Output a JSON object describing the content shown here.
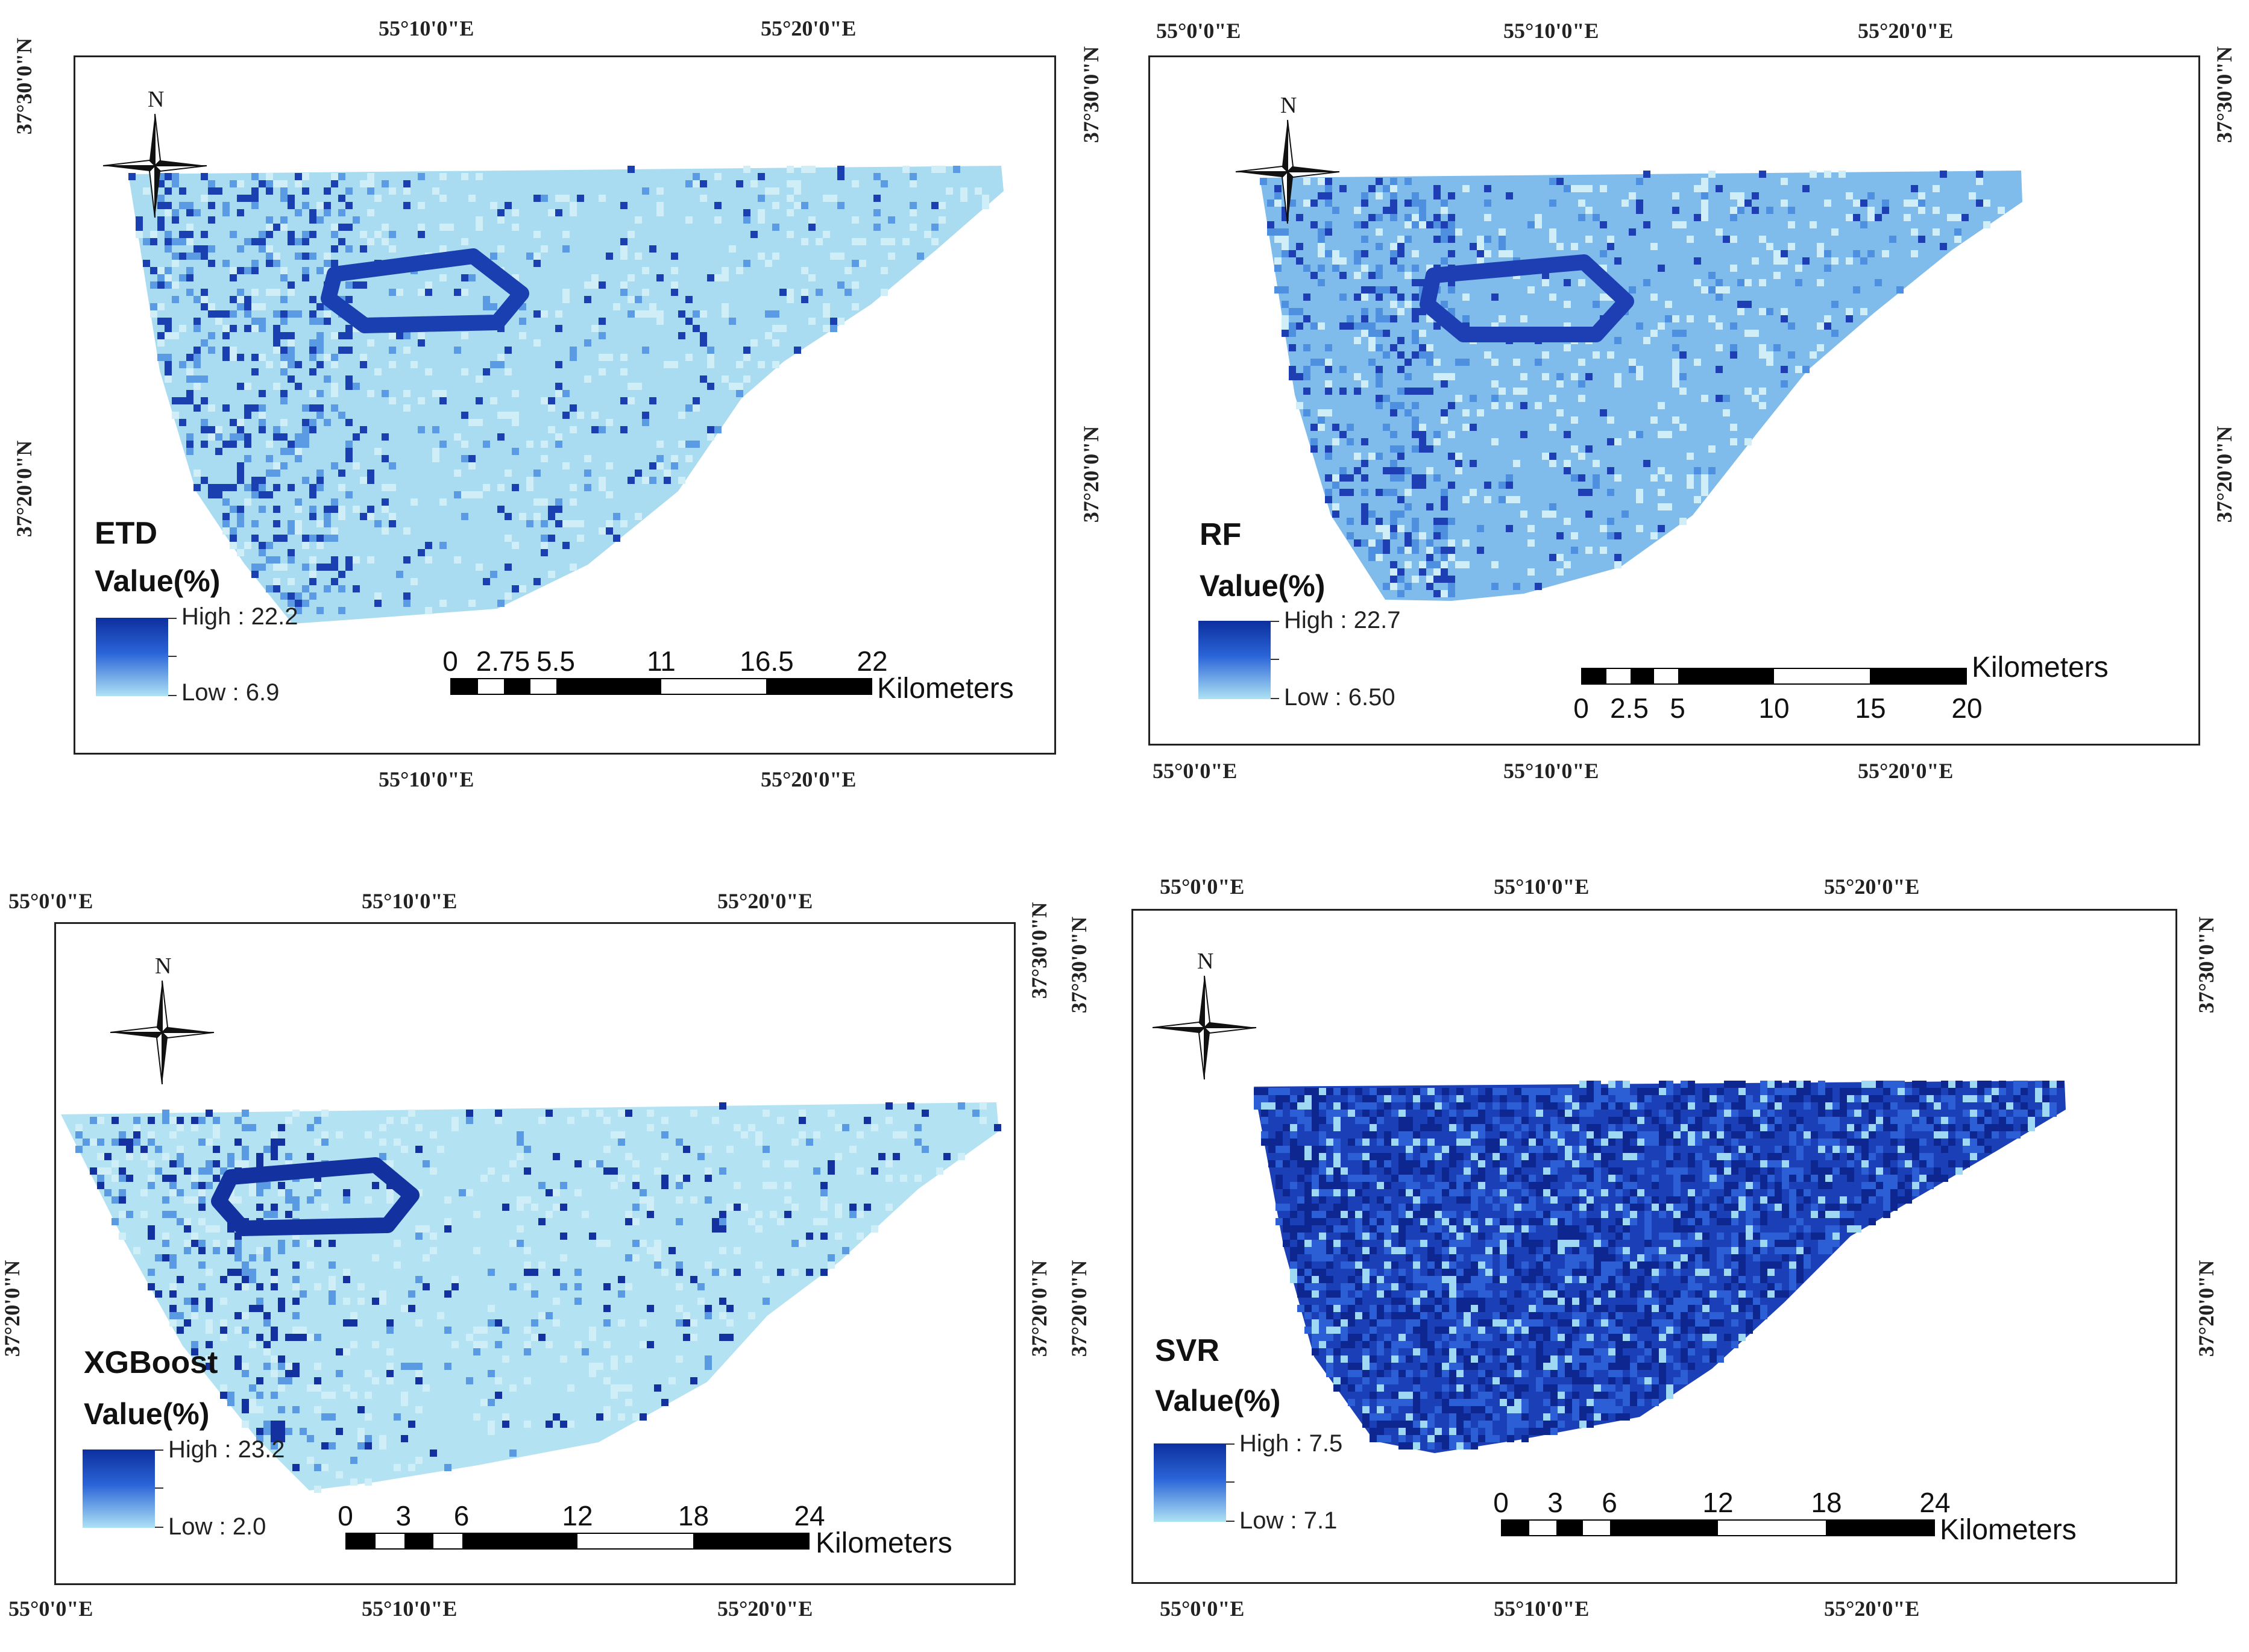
{
  "coordinate_labels": {
    "e_55_00": "55°0'0\"E",
    "e_55_10": "55°10'0\"E",
    "e_55_20": "55°20'0\"E",
    "n_37_30": "37°30'0\"N",
    "n_37_20": "37°20'0\"N"
  },
  "north_arrow_label": "N",
  "legend_title": "Value(%)",
  "scale_unit": "Kilometers",
  "panels": [
    {
      "id": "etd",
      "model": "ETD",
      "legend_high": "High : 22.2",
      "legend_low": "Low : 6.9",
      "scale_labels": [
        "0",
        "2.75",
        "5.5",
        "11",
        "16.5",
        "22"
      ],
      "palette": {
        "base": "#a9dcf0",
        "mid": "#5b9be3",
        "dark": "#1a3fb0"
      }
    },
    {
      "id": "rf",
      "model": "RF",
      "legend_high": "High : 22.7",
      "legend_low": "Low : 6.50",
      "scale_labels": [
        "0",
        "2.5",
        "5",
        "10",
        "15",
        "20"
      ],
      "palette": {
        "base": "#7fbbeb",
        "mid": "#4f8fe0",
        "dark": "#1d3fb3"
      }
    },
    {
      "id": "xgboost",
      "model": "XGBoost",
      "legend_high": "High : 23.2",
      "legend_low": "Low : 2.0",
      "scale_labels": [
        "0",
        "3",
        "6",
        "12",
        "18",
        "24"
      ],
      "palette": {
        "base": "#b3e3f3",
        "mid": "#5a9ae2",
        "dark": "#13329f"
      }
    },
    {
      "id": "svr",
      "model": "SVR",
      "legend_high": "High : 7.5",
      "legend_low": "Low : 7.1",
      "scale_labels": [
        "0",
        "3",
        "6",
        "12",
        "18",
        "24"
      ],
      "palette": {
        "base": "#1b3fb6",
        "mid": "#2c5fd6",
        "dark": "#0d2690"
      }
    }
  ]
}
